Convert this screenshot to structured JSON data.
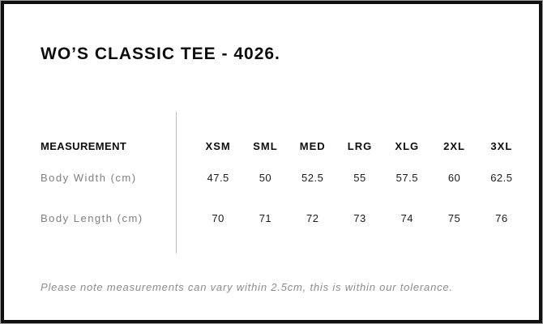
{
  "page": {
    "title": "WO’S CLASSIC TEE - 4026."
  },
  "size_chart": {
    "header_label": "MEASUREMENT",
    "sizes": [
      "XSM",
      "SML",
      "MED",
      "LRG",
      "XLG",
      "2XL",
      "3XL"
    ],
    "rows": [
      {
        "label": "Body Width (cm)",
        "values": [
          "47.5",
          "50",
          "52.5",
          "55",
          "57.5",
          "60",
          "62.5"
        ]
      },
      {
        "label": "Body Length (cm)",
        "values": [
          "70",
          "71",
          "72",
          "73",
          "74",
          "75",
          "76"
        ]
      }
    ]
  },
  "note": "Please note measurements can vary within 2.5cm, this is within our tolerance.",
  "colors": {
    "frame_border": "#101010",
    "outer_edge": "#9e9e9e",
    "heading_text": "#0d0d0d",
    "value_text": "#1a1a1a",
    "label_text": "#7f7f7f",
    "note_text": "#8c8c8c",
    "divider": "#bcbcbc"
  },
  "chart_data": {
    "type": "table",
    "title": "WO’S CLASSIC TEE - 4026.",
    "columns": [
      "MEASUREMENT",
      "XSM",
      "SML",
      "MED",
      "LRG",
      "XLG",
      "2XL",
      "3XL"
    ],
    "rows": [
      [
        "Body Width (cm)",
        47.5,
        50,
        52.5,
        55,
        57.5,
        60,
        62.5
      ],
      [
        "Body Length (cm)",
        70,
        71,
        72,
        73,
        74,
        75,
        76
      ]
    ]
  }
}
